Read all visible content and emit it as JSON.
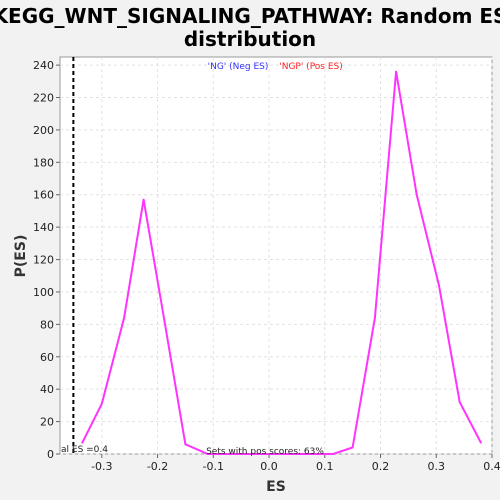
{
  "chart_data": {
    "type": "line",
    "title_line1": "KEGG_WNT_SIGNALING_PATHWAY: Random ES",
    "title_line2": "distribution",
    "xlabel": "ES",
    "ylabel": "P(ES)",
    "xlim": [
      -0.375,
      0.4
    ],
    "ylim": [
      0,
      245
    ],
    "xticks": [
      -0.3,
      -0.2,
      -0.1,
      0.0,
      0.1,
      0.2,
      0.3,
      0.4
    ],
    "xtick_labels": [
      "-0.3",
      "-0.2",
      "-0.1",
      "0.0",
      "0.1",
      "0.2",
      "0.3",
      "0.4"
    ],
    "yticks": [
      0,
      20,
      40,
      60,
      80,
      100,
      120,
      140,
      160,
      180,
      200,
      220,
      240
    ],
    "ytick_labels": [
      "0",
      "20",
      "40",
      "60",
      "80",
      "100",
      "120",
      "140",
      "160",
      "180",
      "200",
      "220",
      "240"
    ],
    "grid": true,
    "legend": [
      {
        "text": "'NG' (Neg ES)",
        "color": "#3333ff"
      },
      {
        "text": "'NGP' (Pos ES)",
        "color": "#ff2222"
      }
    ],
    "series": [
      {
        "color": "#ff33ff",
        "x": [
          -0.335,
          -0.3,
          -0.26,
          -0.225,
          -0.19,
          -0.15,
          -0.11,
          -0.07,
          -0.04,
          0.0,
          0.04,
          0.08,
          0.115,
          0.15,
          0.19,
          0.228,
          0.265,
          0.305,
          0.342,
          0.38
        ],
        "y": [
          7,
          31,
          84,
          157,
          87,
          6,
          0,
          0,
          0,
          0,
          0,
          0,
          0,
          4,
          84,
          236,
          160,
          104,
          32,
          7
        ]
      }
    ],
    "reference_line": {
      "x": -0.351,
      "label": "al ES =0.4",
      "color": "#000000"
    },
    "annotation": "Sets with pos scores: 63%"
  }
}
